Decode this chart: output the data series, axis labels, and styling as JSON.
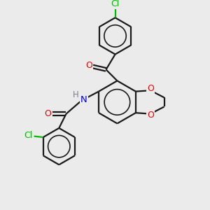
{
  "background_color": "#ebebeb",
  "bond_color": "#1a1a1a",
  "cl_color": "#00bb00",
  "o_color": "#ee0000",
  "n_color": "#0000ee",
  "h_color": "#708090",
  "line_width": 1.6,
  "dbo": 0.08,
  "figsize": [
    3.0,
    3.0
  ],
  "dpi": 100,
  "xlim": [
    0,
    10
  ],
  "ylim": [
    0,
    10
  ]
}
